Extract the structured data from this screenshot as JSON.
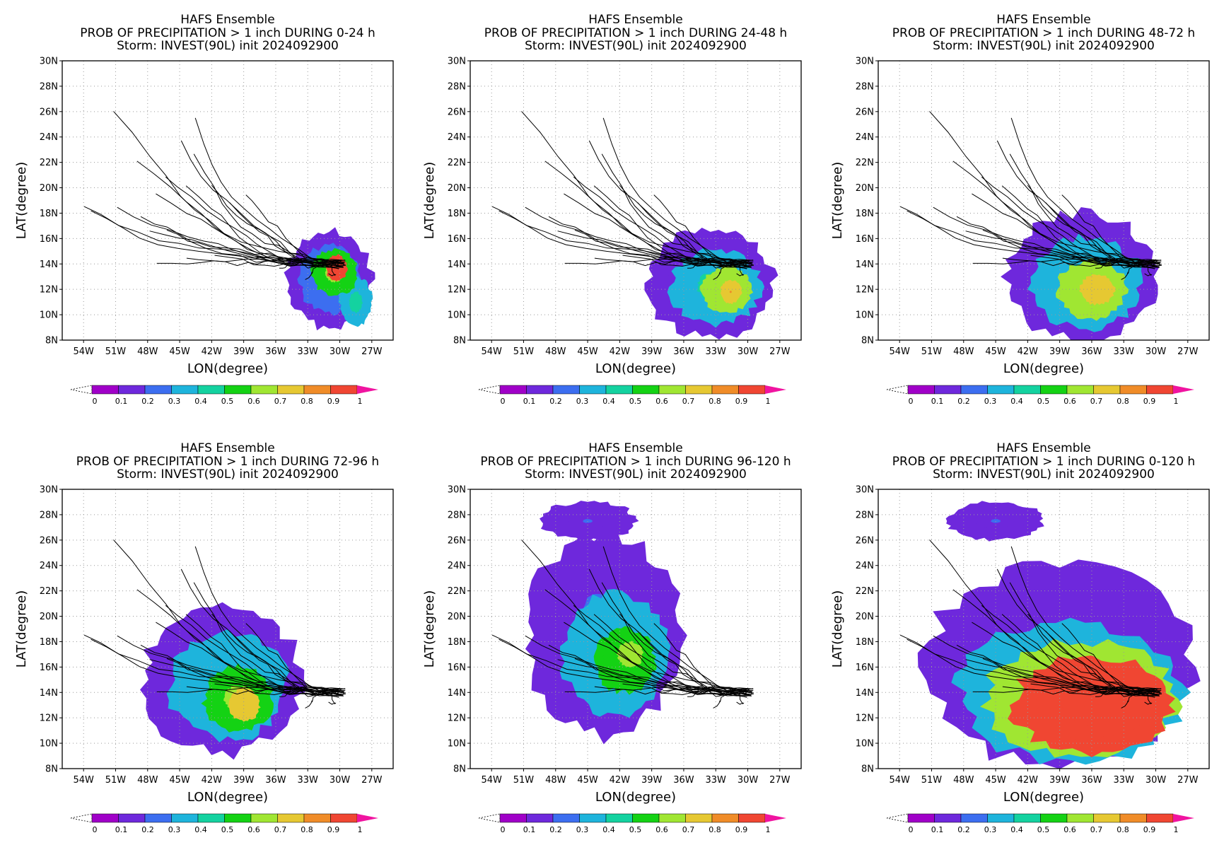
{
  "figure": {
    "colorbar_colors": [
      "#a000c8",
      "#6e28dc",
      "#3c6ef0",
      "#1eb4dc",
      "#14d2a0",
      "#14d214",
      "#a0e632",
      "#e6c832",
      "#f08c28",
      "#f04632"
    ],
    "colorbar_over_color": "#f014a0",
    "colorbar_labels": [
      "0",
      "0.1",
      "0.2",
      "0.3",
      "0.4",
      "0.5",
      "0.6",
      "0.7",
      "0.8",
      "0.9",
      "1"
    ],
    "track_color": "#000000"
  },
  "chart_data": [
    {
      "type": "heatmap",
      "title": "HAFS Ensemble",
      "subtitle": "PROB OF PRECIPITATION > 1 inch DURING  0-24 h",
      "subtitle2": "Storm: INVEST(90L) init 2024092900",
      "xlabel": "LON(degree)",
      "ylabel": "LAT(degree)",
      "xlim": [
        -56,
        -25
      ],
      "ylim": [
        8,
        30
      ],
      "xticks": [
        "54W",
        "51W",
        "48W",
        "45W",
        "42W",
        "39W",
        "36W",
        "33W",
        "30W",
        "27W"
      ],
      "yticks": [
        "8N",
        "10N",
        "12N",
        "14N",
        "16N",
        "18N",
        "20N",
        "22N",
        "24N",
        "26N",
        "28N",
        "30N"
      ],
      "grid": true,
      "blobs": [
        {
          "cx": -31,
          "cy": 12.8,
          "rx": 4.0,
          "ry": 3.8,
          "p": 0.18
        },
        {
          "cx": -28.5,
          "cy": 11.0,
          "rx": 1.5,
          "ry": 2.0,
          "p": 0.35
        },
        {
          "cx": -30.5,
          "cy": 13.3,
          "rx": 2.2,
          "ry": 1.8,
          "p": 0.55
        },
        {
          "cx": -30.3,
          "cy": 13.7,
          "rx": 1.0,
          "ry": 1.0,
          "p": 0.92
        }
      ]
    },
    {
      "type": "heatmap",
      "title": "HAFS Ensemble",
      "subtitle": "PROB OF PRECIPITATION > 1 inch DURING 24-48 h",
      "subtitle2": "Storm: INVEST(90L) init 2024092900",
      "xlabel": "LON(degree)",
      "ylabel": "LAT(degree)",
      "xlim": [
        -56,
        -25
      ],
      "ylim": [
        8,
        30
      ],
      "xticks": [
        "54W",
        "51W",
        "48W",
        "45W",
        "42W",
        "39W",
        "36W",
        "33W",
        "30W",
        "27W"
      ],
      "yticks": [
        "8N",
        "10N",
        "12N",
        "14N",
        "16N",
        "18N",
        "20N",
        "22N",
        "24N",
        "26N",
        "28N",
        "30N"
      ],
      "grid": true,
      "blobs": [
        {
          "cx": -33.5,
          "cy": 12.5,
          "rx": 6.0,
          "ry": 4.3,
          "p": 0.15
        },
        {
          "cx": -33.0,
          "cy": 12.2,
          "rx": 4.2,
          "ry": 3.0,
          "p": 0.35
        },
        {
          "cx": -32.0,
          "cy": 12.0,
          "rx": 2.3,
          "ry": 1.8,
          "p": 0.62
        },
        {
          "cx": -31.6,
          "cy": 11.8,
          "rx": 1.0,
          "ry": 0.9,
          "p": 0.78
        }
      ]
    },
    {
      "type": "heatmap",
      "title": "HAFS Ensemble",
      "subtitle": "PROB OF PRECIPITATION > 1 inch DURING 48-72 h",
      "subtitle2": "Storm: INVEST(90L) init 2024092900",
      "xlabel": "LON(degree)",
      "ylabel": "LAT(degree)",
      "xlim": [
        -56,
        -25
      ],
      "ylim": [
        8,
        30
      ],
      "xticks": [
        "54W",
        "51W",
        "48W",
        "45W",
        "42W",
        "39W",
        "36W",
        "33W",
        "30W",
        "27W"
      ],
      "yticks": [
        "8N",
        "10N",
        "12N",
        "14N",
        "16N",
        "18N",
        "20N",
        "22N",
        "24N",
        "26N",
        "28N",
        "30N"
      ],
      "grid": true,
      "blobs": [
        {
          "cx": -37.0,
          "cy": 13.0,
          "rx": 7.0,
          "ry": 5.0,
          "p": 0.14
        },
        {
          "cx": -36.5,
          "cy": 12.5,
          "rx": 5.2,
          "ry": 3.6,
          "p": 0.35
        },
        {
          "cx": -36.0,
          "cy": 12.0,
          "rx": 3.2,
          "ry": 2.3,
          "p": 0.6
        },
        {
          "cx": -35.5,
          "cy": 12.0,
          "rx": 1.6,
          "ry": 1.2,
          "p": 0.72
        }
      ]
    },
    {
      "type": "heatmap",
      "title": "HAFS Ensemble",
      "subtitle": "PROB OF PRECIPITATION > 1 inch DURING 72-96 h",
      "subtitle2": "Storm: INVEST(90L) init 2024092900",
      "xlabel": "LON(degree)",
      "ylabel": "LAT(degree)",
      "xlim": [
        -56,
        -25
      ],
      "ylim": [
        8,
        30
      ],
      "xticks": [
        "54W",
        "51W",
        "48W",
        "45W",
        "42W",
        "39W",
        "36W",
        "33W",
        "30W",
        "27W"
      ],
      "yticks": [
        "8N",
        "10N",
        "12N",
        "14N",
        "16N",
        "18N",
        "20N",
        "22N",
        "24N",
        "26N",
        "28N",
        "30N"
      ],
      "grid": true,
      "blobs": [
        {
          "cx": -41.0,
          "cy": 15.0,
          "rx": 7.5,
          "ry": 5.8,
          "p": 0.13
        },
        {
          "cx": -40.5,
          "cy": 14.5,
          "rx": 5.5,
          "ry": 4.2,
          "p": 0.3
        },
        {
          "cx": -39.5,
          "cy": 13.5,
          "rx": 3.2,
          "ry": 2.6,
          "p": 0.55
        },
        {
          "cx": -39.0,
          "cy": 13.0,
          "rx": 1.5,
          "ry": 1.3,
          "p": 0.7
        }
      ]
    },
    {
      "type": "heatmap",
      "title": "HAFS Ensemble",
      "subtitle": "PROB OF PRECIPITATION > 1 inch DURING 96-120 h",
      "subtitle2": "Storm: INVEST(90L) init 2024092900",
      "xlabel": "LON(degree)",
      "ylabel": "LAT(degree)",
      "xlim": [
        -56,
        -25
      ],
      "ylim": [
        8,
        30
      ],
      "xticks": [
        "54W",
        "51W",
        "48W",
        "45W",
        "42W",
        "39W",
        "36W",
        "33W",
        "30W",
        "27W"
      ],
      "yticks": [
        "8N",
        "10N",
        "12N",
        "14N",
        "16N",
        "18N",
        "20N",
        "22N",
        "24N",
        "26N",
        "28N",
        "30N"
      ],
      "grid": true,
      "blobs": [
        {
          "cx": -45.0,
          "cy": 27.5,
          "rx": 4.5,
          "ry": 1.5,
          "p": 0.1
        },
        {
          "cx": -43.5,
          "cy": 18.5,
          "rx": 7.2,
          "ry": 8.0,
          "p": 0.13
        },
        {
          "cx": -42.5,
          "cy": 17.0,
          "rx": 5.0,
          "ry": 4.8,
          "p": 0.3
        },
        {
          "cx": -41.5,
          "cy": 16.5,
          "rx": 2.8,
          "ry": 2.5,
          "p": 0.5
        },
        {
          "cx": -41.0,
          "cy": 17.0,
          "rx": 1.2,
          "ry": 1.0,
          "p": 0.6
        }
      ]
    },
    {
      "type": "heatmap",
      "title": "HAFS Ensemble",
      "subtitle": "PROB OF PRECIPITATION > 1 inch DURING 0-120 h",
      "subtitle2": "Storm: INVEST(90L) init 2024092900",
      "xlabel": "LON(degree)",
      "ylabel": "LAT(degree)",
      "xlim": [
        -56,
        -25
      ],
      "ylim": [
        8,
        30
      ],
      "xticks": [
        "54W",
        "51W",
        "48W",
        "45W",
        "42W",
        "39W",
        "36W",
        "33W",
        "30W",
        "27W"
      ],
      "yticks": [
        "8N",
        "10N",
        "12N",
        "14N",
        "16N",
        "18N",
        "20N",
        "22N",
        "24N",
        "26N",
        "28N",
        "30N"
      ],
      "grid": true,
      "blobs": [
        {
          "cx": -45.0,
          "cy": 27.5,
          "rx": 4.5,
          "ry": 1.5,
          "p": 0.1
        },
        {
          "cx": -39.0,
          "cy": 16.0,
          "rx": 12.5,
          "ry": 8.0,
          "p": 0.12
        },
        {
          "cx": -38.0,
          "cy": 14.0,
          "rx": 10.5,
          "ry": 5.5,
          "p": 0.3
        },
        {
          "cx": -37.0,
          "cy": 13.5,
          "rx": 9.0,
          "ry": 4.5,
          "p": 0.6
        },
        {
          "cx": -36.0,
          "cy": 13.0,
          "rx": 7.5,
          "ry": 3.8,
          "p": 0.92
        }
      ]
    }
  ],
  "tracks": {
    "end": [
      -29.8,
      14.0
    ],
    "starts": [
      [
        -51.2,
        26.0
      ],
      [
        -48.7,
        22.0
      ],
      [
        -46.0,
        21.0
      ],
      [
        -44.8,
        24.0
      ],
      [
        -43.8,
        25.5
      ],
      [
        -44.0,
        22.5
      ],
      [
        -44.5,
        20.0
      ],
      [
        -47.0,
        19.5
      ],
      [
        -50.5,
        18.6
      ],
      [
        -53.8,
        18.6
      ],
      [
        -53.5,
        17.9
      ],
      [
        -49.0,
        17.5
      ],
      [
        -48.0,
        16.7
      ],
      [
        -47.0,
        14.3
      ],
      [
        -44.0,
        14.5
      ],
      [
        -41.5,
        14.5
      ],
      [
        -38.0,
        14.5
      ],
      [
        -36.0,
        13.7
      ],
      [
        -33.5,
        12.9
      ],
      [
        -31.0,
        13.0
      ],
      [
        -40.0,
        18.5
      ],
      [
        -38.5,
        19.5
      ],
      [
        -42.0,
        20.5
      ],
      [
        -46.5,
        17.0
      ]
    ]
  }
}
